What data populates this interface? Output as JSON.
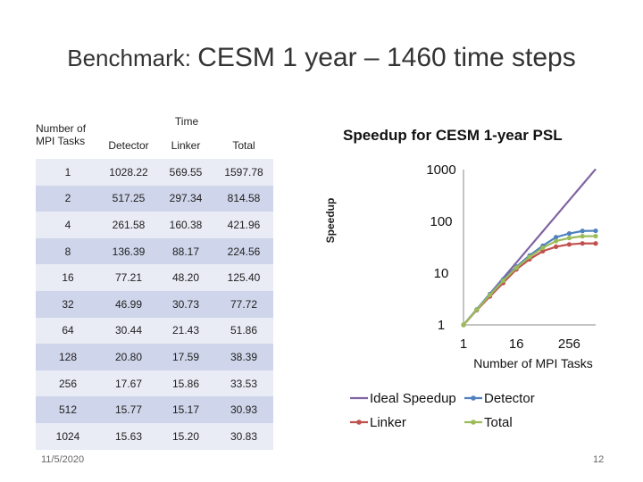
{
  "slide": {
    "title_part1": "Benchmark: ",
    "title_part2": "CESM 1 year – 1460 time steps",
    "date": "11/5/2020",
    "page_number": "12"
  },
  "table": {
    "mpi_header": "Number of MPI Tasks",
    "time_header": "Time",
    "columns": [
      "Detector",
      "Linker",
      "Total"
    ],
    "rows": [
      {
        "mpi": "1",
        "detector": "1028.22",
        "linker": "569.55",
        "total": "1597.78"
      },
      {
        "mpi": "2",
        "detector": "517.25",
        "linker": "297.34",
        "total": "814.58"
      },
      {
        "mpi": "4",
        "detector": "261.58",
        "linker": "160.38",
        "total": "421.96"
      },
      {
        "mpi": "8",
        "detector": "136.39",
        "linker": "88.17",
        "total": "224.56"
      },
      {
        "mpi": "16",
        "detector": "77.21",
        "linker": "48.20",
        "total": "125.40"
      },
      {
        "mpi": "32",
        "detector": "46.99",
        "linker": "30.73",
        "total": "77.72"
      },
      {
        "mpi": "64",
        "detector": "30.44",
        "linker": "21.43",
        "total": "51.86"
      },
      {
        "mpi": "128",
        "detector": "20.80",
        "linker": "17.59",
        "total": "38.39"
      },
      {
        "mpi": "256",
        "detector": "17.67",
        "linker": "15.86",
        "total": "33.53"
      },
      {
        "mpi": "512",
        "detector": "15.77",
        "linker": "15.17",
        "total": "30.93"
      },
      {
        "mpi": "1024",
        "detector": "15.63",
        "linker": "15.20",
        "total": "30.83"
      }
    ]
  },
  "chart_data": {
    "type": "line",
    "title": "Speedup for CESM 1-year PSL",
    "xlabel": "Number of MPI Tasks",
    "ylabel": "Speedup",
    "x_scale": "log2",
    "y_scale": "log10",
    "x": [
      1,
      2,
      4,
      8,
      16,
      32,
      64,
      128,
      256,
      512,
      1024
    ],
    "xticks": [
      "1",
      "16",
      "256"
    ],
    "xlim": [
      1,
      1024
    ],
    "yticks": [
      "1",
      "10",
      "100",
      "1000"
    ],
    "ylim": [
      1,
      1000
    ],
    "legend_position": "bottom",
    "series": [
      {
        "name": "Ideal Speedup",
        "color": "#8064a2",
        "marker": "none",
        "values": [
          1,
          2,
          4,
          8,
          16,
          32,
          64,
          128,
          256,
          512,
          1024
        ]
      },
      {
        "name": "Detector",
        "color": "#4f81bd",
        "marker": "circle",
        "values": [
          1,
          1.99,
          3.93,
          7.54,
          13.32,
          21.88,
          33.78,
          49.43,
          58.19,
          65.2,
          65.78
        ]
      },
      {
        "name": "Linker",
        "color": "#c0504d",
        "marker": "circle",
        "values": [
          1,
          1.92,
          3.55,
          6.46,
          11.82,
          18.53,
          26.58,
          32.38,
          35.91,
          37.55,
          37.47
        ]
      },
      {
        "name": "Total",
        "color": "#9bbb59",
        "marker": "circle",
        "values": [
          1,
          1.96,
          3.79,
          7.12,
          12.74,
          20.56,
          30.81,
          41.62,
          47.65,
          51.66,
          51.82
        ]
      }
    ]
  }
}
